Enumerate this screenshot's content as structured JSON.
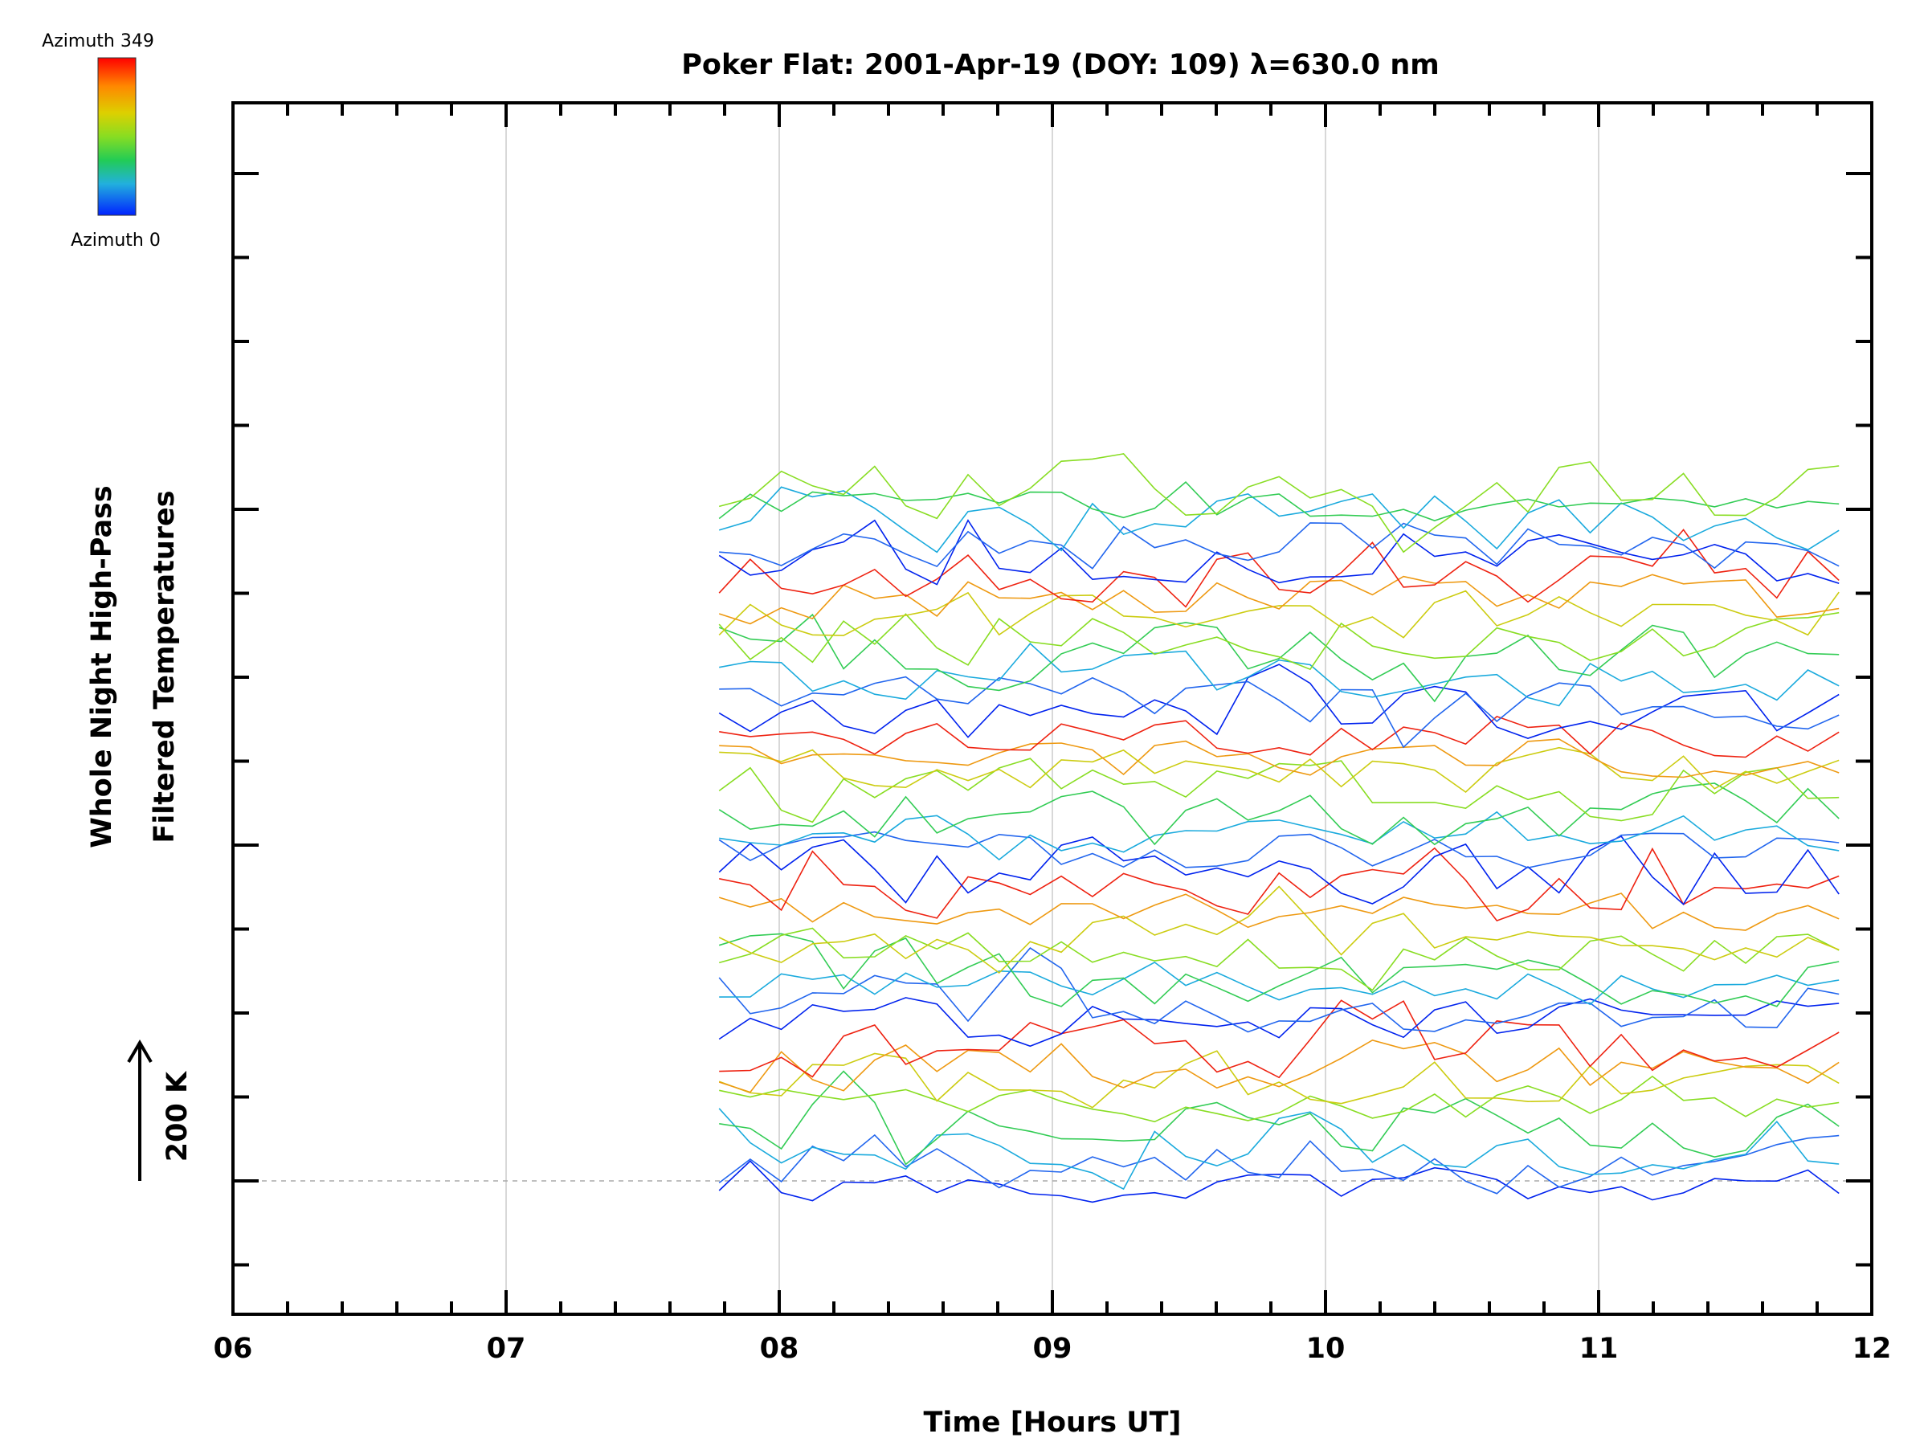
{
  "chart_data": {
    "type": "line",
    "title": "Poker Flat: 2001-Apr-19 (DOY: 109) λ=630.0 nm",
    "xlabel": "Time [Hours UT]",
    "ylabel": [
      "Whole Night High-Pass",
      "Filtered Temperatures"
    ],
    "scale_bar": "200 K",
    "x_ticks": [
      "06",
      "07",
      "08",
      "09",
      "10",
      "11",
      "12"
    ],
    "xlim": [
      6,
      12
    ],
    "x_start": 7.78,
    "x_end": 11.88,
    "n_points": 37,
    "grid_vertical": true,
    "colorbar": {
      "top_label": "Azimuth 349",
      "bottom_label": "Azimuth 0",
      "colors": [
        "#ff0000",
        "#ff8000",
        "#ffd000",
        "#a0e000",
        "#20d040",
        "#20c0c0",
        "#2080ff",
        "#0000ff"
      ]
    },
    "series_color_cycle": [
      "#0022ee",
      "#2266ee",
      "#1aaadd",
      "#33cc55",
      "#88dd22",
      "#cccc11",
      "#ee9911",
      "#ee2211"
    ],
    "series_baselines": [
      -5,
      22,
      40,
      56,
      75,
      96,
      112,
      133,
      155,
      172,
      188,
      200,
      220,
      236,
      260,
      282,
      298,
      320,
      338,
      356,
      378,
      398,
      412,
      432,
      452,
      468,
      490,
      510,
      530,
      548,
      568,
      588,
      600,
      620,
      640,
      658,
      672
    ],
    "noise_amplitude": 12
  }
}
